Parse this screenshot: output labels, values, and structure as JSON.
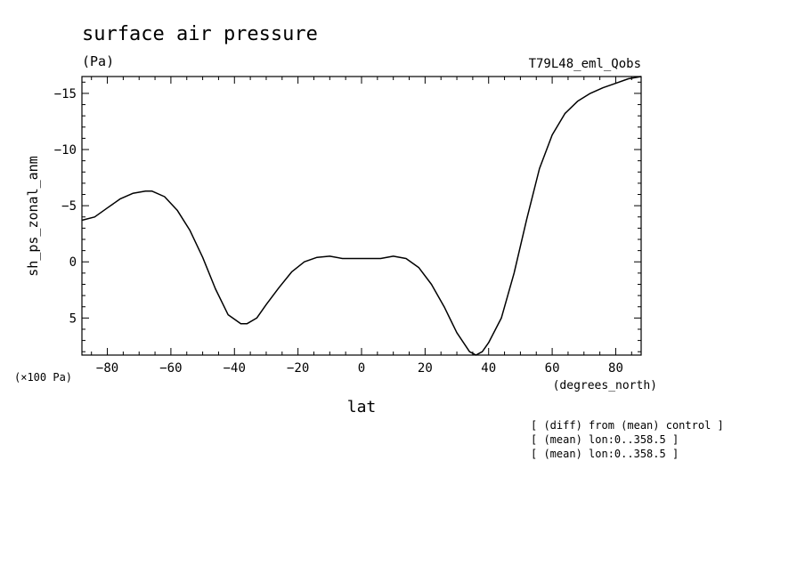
{
  "chart_data": {
    "type": "line",
    "title": "surface air pressure",
    "subtitle": "(Pa)",
    "experiment_label": "T79L48_eml_Qobs",
    "xlabel": "lat",
    "x_units": "(degrees_north)",
    "ylabel": "sh_ps_zonal_anm",
    "y_scale_label": "(×100 Pa)",
    "xlim": [
      -88,
      88
    ],
    "ylim": [
      8.3,
      -16.5
    ],
    "y_inverted": true,
    "x_ticks": [
      -80,
      -60,
      -40,
      -20,
      0,
      20,
      40,
      60,
      80
    ],
    "x_tick_labels": [
      "−80",
      "−60",
      "−40",
      "−20",
      "0",
      "20",
      "40",
      "60",
      "80"
    ],
    "y_ticks": [
      -15,
      -10,
      -5,
      0,
      5
    ],
    "y_tick_labels": [
      "−15",
      "−10",
      "−5",
      "0",
      "5"
    ],
    "grid": false,
    "line_color": "#000000",
    "series": [
      {
        "x": [
          -88,
          -84,
          -80,
          -76,
          -72,
          -68,
          -66,
          -62,
          -58,
          -54,
          -50,
          -46,
          -42,
          -38,
          -36,
          -33,
          -30,
          -26,
          -22,
          -18,
          -14,
          -10,
          -6,
          -2,
          2,
          6,
          10,
          14,
          18,
          22,
          26,
          30,
          34,
          36,
          38,
          40,
          44,
          48,
          52,
          56,
          60,
          64,
          68,
          72,
          76,
          80,
          84,
          88
        ],
        "y": [
          -3.7,
          -4.0,
          -4.8,
          -5.6,
          -6.1,
          -6.3,
          -6.3,
          -5.8,
          -4.6,
          -2.8,
          -0.4,
          2.4,
          4.7,
          5.5,
          5.5,
          5.0,
          3.8,
          2.3,
          0.9,
          0.0,
          -0.4,
          -0.5,
          -0.3,
          -0.3,
          -0.3,
          -0.3,
          -0.5,
          -0.3,
          0.5,
          2.0,
          4.0,
          6.3,
          8.0,
          8.3,
          8.0,
          7.2,
          5.0,
          1.0,
          -3.8,
          -8.3,
          -11.3,
          -13.2,
          -14.3,
          -15.0,
          -15.5,
          -15.9,
          -16.3,
          -16.5
        ]
      }
    ],
    "annotations": [
      "[ (diff) from (mean) control ]",
      "[ (mean) lon:0..358.5 ]",
      "[ (mean) lon:0..358.5 ]"
    ]
  }
}
